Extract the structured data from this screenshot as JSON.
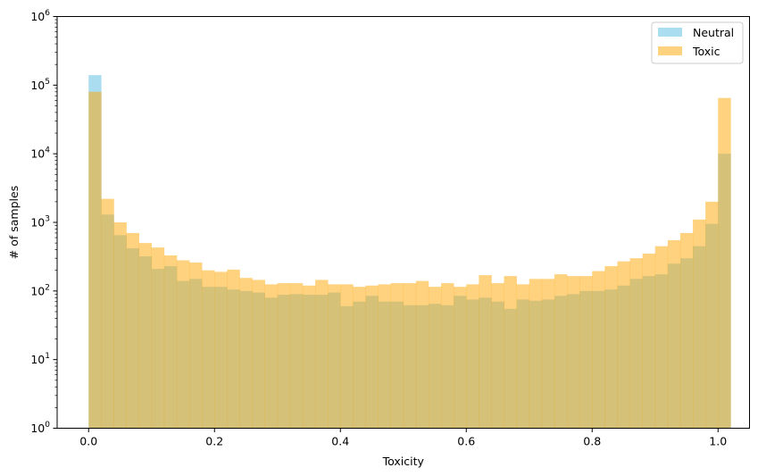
{
  "chart_data": {
    "type": "histogram",
    "title": "",
    "xlabel": "Toxicity",
    "ylabel": "# of samples",
    "xlim": [
      -0.05,
      1.05
    ],
    "ylim": [
      1,
      1000000
    ],
    "yscale": "log",
    "grid": false,
    "legend_position": "top-right",
    "bin_width": 0.02,
    "x_tick_labels": [
      "0.0",
      "0.2",
      "0.4",
      "0.6",
      "0.8",
      "1.0"
    ],
    "x_ticks": [
      0.0,
      0.2,
      0.4,
      0.6,
      0.8,
      1.0
    ],
    "y_tick_labels": [
      {
        "base": "10",
        "exp": "0"
      },
      {
        "base": "10",
        "exp": "1"
      },
      {
        "base": "10",
        "exp": "2"
      },
      {
        "base": "10",
        "exp": "3"
      },
      {
        "base": "10",
        "exp": "4"
      },
      {
        "base": "10",
        "exp": "5"
      },
      {
        "base": "10",
        "exp": "6"
      }
    ],
    "y_ticks": [
      1,
      10,
      100,
      1000,
      10000,
      100000,
      1000000
    ],
    "series": [
      {
        "name": "Neutral",
        "color": "#87ceeb",
        "opacity": 0.7,
        "values": [
          140000,
          1300,
          650,
          420,
          320,
          210,
          230,
          140,
          150,
          115,
          115,
          105,
          100,
          95,
          80,
          88,
          90,
          88,
          88,
          95,
          60,
          70,
          85,
          70,
          70,
          62,
          62,
          65,
          62,
          85,
          75,
          80,
          70,
          55,
          75,
          72,
          75,
          85,
          90,
          100,
          100,
          105,
          120,
          150,
          165,
          175,
          250,
          300,
          450,
          950,
          10000
        ]
      },
      {
        "name": "Toxic",
        "color": "#ffa500",
        "opacity": 0.5,
        "values": [
          80000,
          2200,
          1000,
          700,
          500,
          430,
          330,
          280,
          260,
          200,
          190,
          205,
          155,
          145,
          125,
          130,
          130,
          120,
          145,
          125,
          125,
          115,
          120,
          125,
          130,
          130,
          140,
          115,
          130,
          115,
          125,
          170,
          130,
          165,
          125,
          150,
          150,
          175,
          165,
          165,
          195,
          230,
          270,
          300,
          350,
          450,
          550,
          700,
          1100,
          2000,
          65000
        ]
      }
    ]
  }
}
